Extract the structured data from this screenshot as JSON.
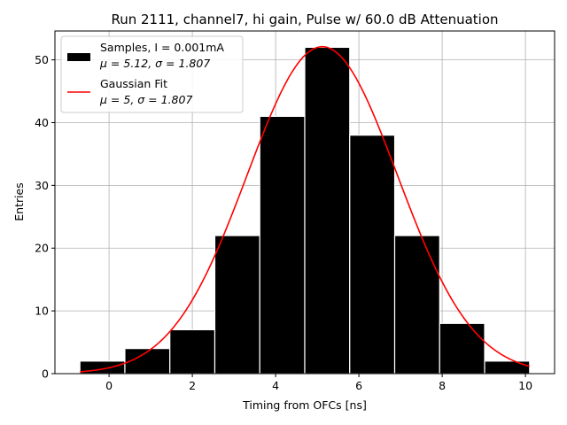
{
  "chart_data": {
    "type": "bar",
    "title": "Run 2111, channel7, hi gain, Pulse w/ 60.0 dB Attenuation",
    "xlabel": "Timing from OFCs [ns]",
    "ylabel": "Entries",
    "xlim": [
      -1.3,
      10.7
    ],
    "ylim": [
      0,
      54.6
    ],
    "xticks": [
      0,
      2,
      4,
      6,
      8,
      10
    ],
    "yticks": [
      0,
      10,
      20,
      30,
      40,
      50
    ],
    "grid": true,
    "legend_position": "top-left",
    "histogram": {
      "name": "Samples, I = 0.001mA",
      "stats_label": "μ = 5.12, σ = 1.807",
      "color": "#000000",
      "edge_color": "#ffffff",
      "bins": [
        {
          "x0": -0.7,
          "x1": 0.38,
          "count": 2
        },
        {
          "x0": 0.38,
          "x1": 1.46,
          "count": 4
        },
        {
          "x0": 1.46,
          "x1": 2.54,
          "count": 7
        },
        {
          "x0": 2.54,
          "x1": 3.62,
          "count": 22
        },
        {
          "x0": 3.62,
          "x1": 4.7,
          "count": 41
        },
        {
          "x0": 4.7,
          "x1": 5.78,
          "count": 52
        },
        {
          "x0": 5.78,
          "x1": 6.86,
          "count": 38
        },
        {
          "x0": 6.86,
          "x1": 7.94,
          "count": 22
        },
        {
          "x0": 7.94,
          "x1": 9.02,
          "count": 8
        },
        {
          "x0": 9.02,
          "x1": 10.1,
          "count": 2
        }
      ]
    },
    "fit": {
      "name": "Gaussian Fit",
      "stats_label": "μ = 5, σ = 1.807",
      "color": "#ff0000",
      "x_range": [
        -0.7,
        10.1
      ],
      "amplitude": 52.1,
      "mean": 5.12,
      "sigma": 1.807
    }
  }
}
